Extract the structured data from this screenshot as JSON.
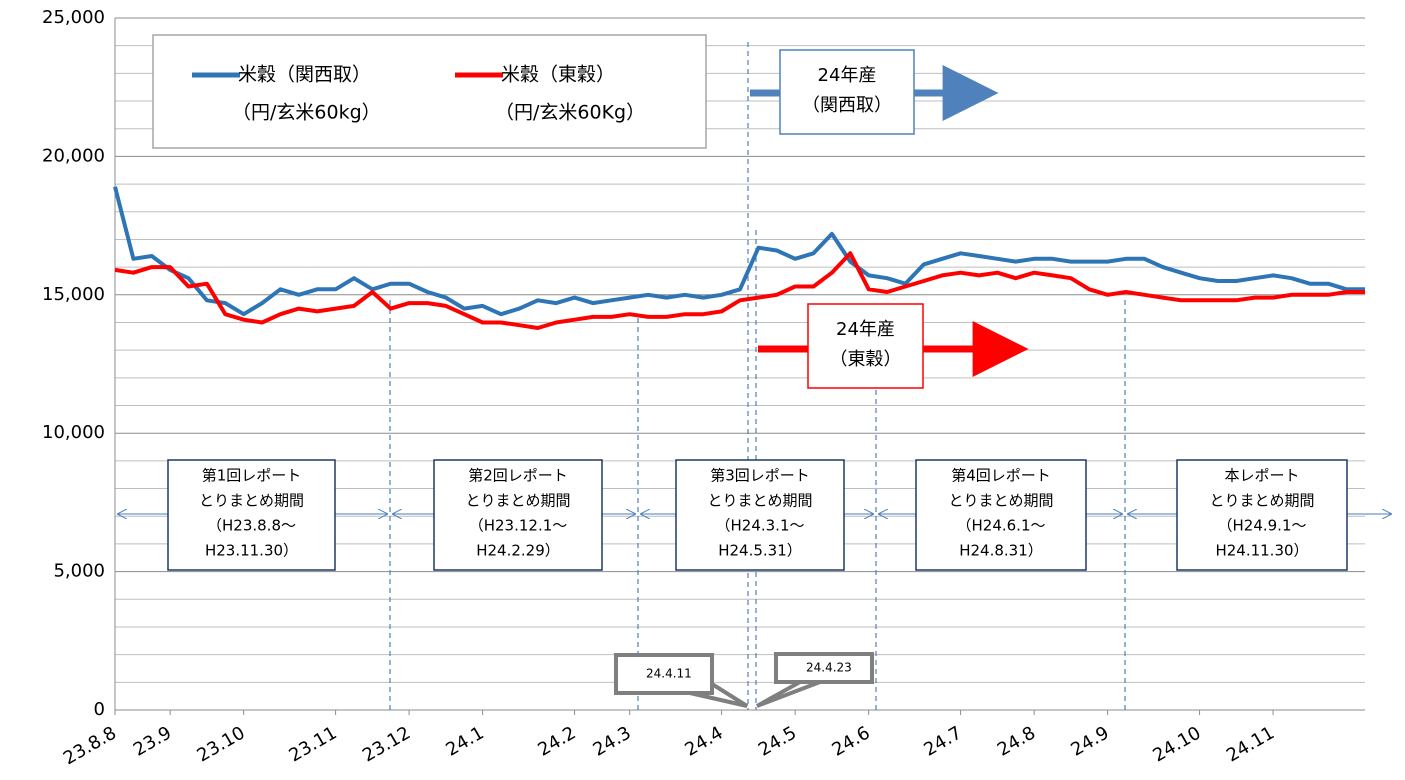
{
  "chart_data": {
    "type": "line",
    "categories": [
      "23.8.8",
      null,
      null,
      "23.9",
      null,
      null,
      null,
      "23.10",
      null,
      null,
      null,
      null,
      "23.11",
      null,
      null,
      null,
      "23.12",
      null,
      null,
      null,
      "24.1",
      null,
      null,
      null,
      null,
      "24.2",
      null,
      null,
      "24.3",
      null,
      null,
      null,
      null,
      "24.4",
      null,
      null,
      null,
      "24.5",
      null,
      null,
      null,
      "24.6",
      null,
      null,
      null,
      null,
      "24.7",
      null,
      null,
      null,
      "24.8",
      null,
      null,
      null,
      "24.9",
      null,
      null,
      null,
      null,
      "24.10",
      null,
      null,
      null,
      "24.11",
      null,
      null,
      null,
      null,
      null
    ],
    "series": [
      {
        "name": "米穀（関西取）",
        "unit": "（円/玄米60kg）",
        "color": "#2e75b6",
        "values": [
          18900,
          16300,
          16400,
          15900,
          15600,
          14800,
          14700,
          14300,
          14700,
          15200,
          15000,
          15200,
          15200,
          15600,
          15200,
          15400,
          15400,
          15100,
          14900,
          14500,
          14600,
          14300,
          14500,
          14800,
          14700,
          14900,
          14700,
          14800,
          14900,
          15000,
          14900,
          15000,
          14900,
          15000,
          15200,
          16700,
          16600,
          16300,
          16500,
          17200,
          16200,
          15700,
          15600,
          15400,
          16100,
          16300,
          16500,
          16400,
          16300,
          16200,
          16300,
          16300,
          16200,
          16200,
          16200,
          16300,
          16300,
          16000,
          15800,
          15600,
          15500,
          15500,
          15600,
          15700,
          15600,
          15400,
          15400,
          15200,
          15200
        ]
      },
      {
        "name": "米穀（東穀）",
        "unit": "（円/玄米60Kg）",
        "color": "#ff0000",
        "values": [
          15900,
          15800,
          16000,
          16000,
          15300,
          15400,
          14300,
          14100,
          14000,
          14300,
          14500,
          14400,
          14500,
          14600,
          15100,
          14500,
          14700,
          14700,
          14600,
          14300,
          14000,
          14000,
          13900,
          13800,
          14000,
          14100,
          14200,
          14200,
          14300,
          14200,
          14200,
          14300,
          14300,
          14400,
          14800,
          14900,
          15000,
          15300,
          15300,
          15800,
          16500,
          15200,
          15100,
          15300,
          15500,
          15700,
          15800,
          15700,
          15800,
          15600,
          15800,
          15700,
          15600,
          15200,
          15000,
          15100,
          15000,
          14900,
          14800,
          14800,
          14800,
          14800,
          14900,
          14900,
          15000,
          15000,
          15000,
          15100,
          15100
        ]
      }
    ],
    "ylim": [
      0,
      25000
    ],
    "yticks": [
      0,
      {
        "value": 5000,
        "label": "5,000"
      },
      {
        "value": 10000,
        "label": "10,000"
      },
      {
        "value": 15000,
        "label": "15,000"
      },
      {
        "value": 20000,
        "label": "20,000"
      },
      {
        "value": 25000,
        "label": "25,000"
      }
    ],
    "minor_yticks": [
      1000,
      2000,
      3000,
      4000,
      6000,
      7000,
      8000,
      9000,
      11000,
      12000,
      13000,
      14000,
      16000,
      17000,
      18000,
      19000,
      21000,
      22000,
      23000,
      24000
    ],
    "grid": true,
    "annotations": {
      "new_crop": [
        [
          "24年産",
          "（関西取）"
        ],
        [
          "24年産",
          "（東穀）"
        ]
      ],
      "periods": [
        [
          "第1回レポート",
          "とりまとめ期間",
          "（H23.8.8～",
          "H23.11.30）"
        ],
        [
          "第2回レポート",
          "とりまとめ期間",
          "（H23.12.1～",
          "H24.2.29）"
        ],
        [
          "第3回レポート",
          "とりまとめ期間",
          "（H24.3.1～",
          "H24.5.31）"
        ],
        [
          "第4回レポート",
          "とりまとめ期間",
          "（H24.6.1～",
          "H24.8.31）"
        ],
        [
          "本レポート",
          "とりまとめ期間",
          "（H24.9.1～",
          "H24.11.30）"
        ]
      ],
      "callouts": [
        "24.4.11",
        "24.4.23"
      ]
    }
  }
}
